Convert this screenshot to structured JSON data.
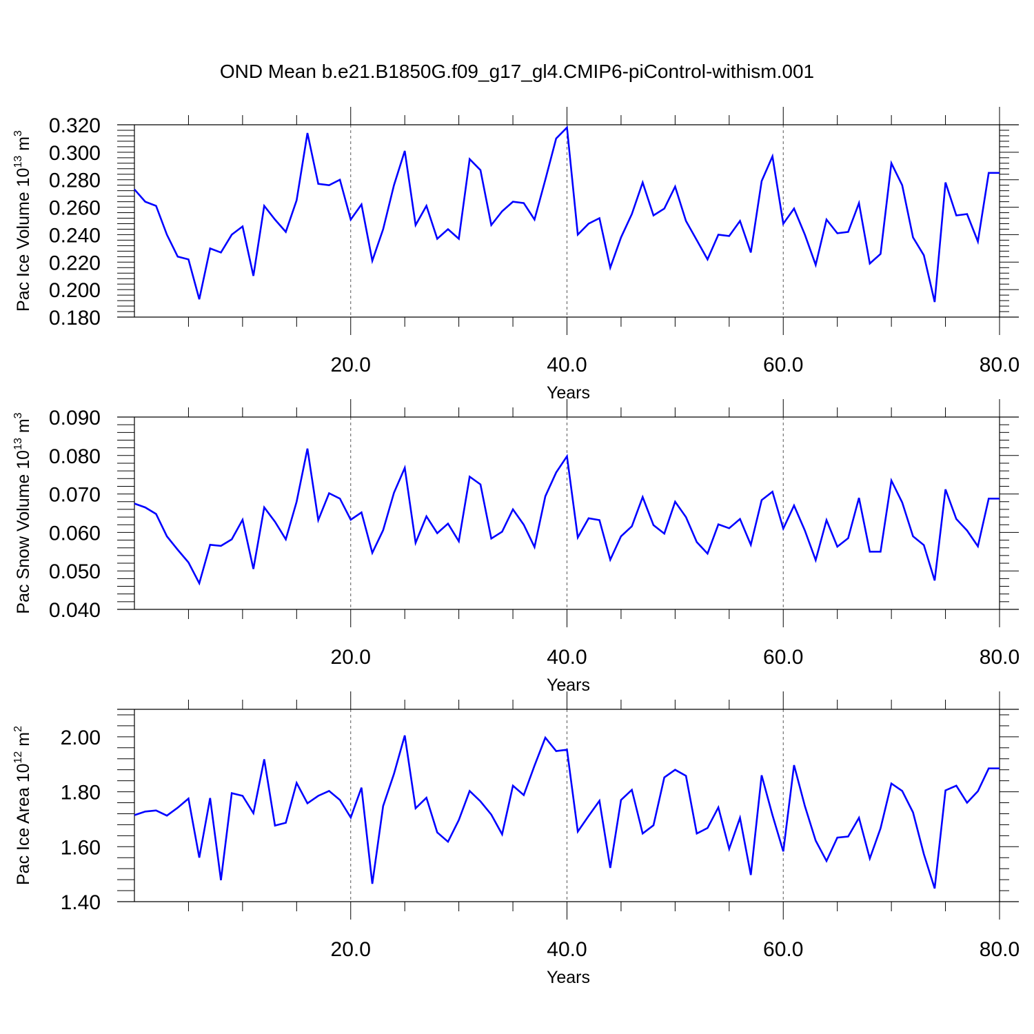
{
  "title": "OND Mean b.e21.B1850G.f09_g17_gl4.CMIP6-piControl-withism.001",
  "colors": {
    "series": "#0000ff",
    "axis": "#000000",
    "grid": "#555555"
  },
  "chart_data": [
    {
      "type": "line",
      "ylabel_main": "Pac Ice Volume 10",
      "ylabel_sup": "13",
      "ylabel_unit": " m",
      "ylabel_unit_sup": "3",
      "xlabel": "Years",
      "xlim": [
        0,
        80
      ],
      "ylim": [
        0.18,
        0.32
      ],
      "xticks": [
        20,
        40,
        60,
        80
      ],
      "xtick_labels": [
        "20.0",
        "40.0",
        "60.0",
        "80.0"
      ],
      "yticks": [
        0.18,
        0.2,
        0.22,
        0.24,
        0.26,
        0.28,
        0.3,
        0.32
      ],
      "ytick_labels": [
        "0.180",
        "0.200",
        "0.220",
        "0.240",
        "0.260",
        "0.280",
        "0.300",
        "0.320"
      ],
      "grid_x": [
        20,
        40,
        60
      ],
      "series": [
        {
          "x": [
            0,
            1,
            2,
            3,
            4,
            5,
            6,
            7,
            8,
            9,
            10,
            11,
            12,
            13,
            14,
            15,
            16,
            17,
            18,
            19,
            20,
            21,
            22,
            23,
            24,
            25,
            26,
            27,
            28,
            29,
            30,
            31,
            32,
            33,
            34,
            35,
            36,
            37,
            38,
            39,
            40,
            41,
            42,
            43,
            44,
            45,
            46,
            47,
            48,
            49,
            50,
            51,
            52,
            53,
            54,
            55,
            56,
            57,
            58,
            59,
            60,
            61,
            62,
            63,
            64,
            65,
            66,
            67,
            68,
            69,
            70,
            71,
            72,
            73,
            74,
            75,
            76,
            77,
            78,
            79,
            80
          ],
          "values": [
            0.273,
            0.264,
            0.261,
            0.24,
            0.224,
            0.222,
            0.193,
            0.23,
            0.227,
            0.24,
            0.246,
            0.21,
            0.261,
            0.251,
            0.242,
            0.265,
            0.314,
            0.277,
            0.276,
            0.28,
            0.251,
            0.262,
            0.221,
            0.244,
            0.276,
            0.301,
            0.247,
            0.261,
            0.237,
            0.244,
            0.237,
            0.295,
            0.287,
            0.247,
            0.257,
            0.264,
            0.263,
            0.251,
            0.28,
            0.31,
            0.318,
            0.24,
            0.248,
            0.252,
            0.216,
            0.238,
            0.255,
            0.278,
            0.254,
            0.259,
            0.275,
            0.25,
            0.236,
            0.222,
            0.24,
            0.239,
            0.25,
            0.227,
            0.279,
            0.297,
            0.248,
            0.259,
            0.24,
            0.218,
            0.251,
            0.241,
            0.242,
            0.263,
            0.219,
            0.226,
            0.292,
            0.276,
            0.238,
            0.225,
            0.191,
            0.278,
            0.254,
            0.255,
            0.235,
            0.285,
            0.285
          ]
        }
      ]
    },
    {
      "type": "line",
      "ylabel_main": "Pac Snow Volume 10",
      "ylabel_sup": "13",
      "ylabel_unit": " m",
      "ylabel_unit_sup": "3",
      "xlabel": "Years",
      "xlim": [
        0,
        80
      ],
      "ylim": [
        0.04,
        0.09
      ],
      "xticks": [
        20,
        40,
        60,
        80
      ],
      "xtick_labels": [
        "20.0",
        "40.0",
        "60.0",
        "80.0"
      ],
      "yticks": [
        0.04,
        0.05,
        0.06,
        0.07,
        0.08,
        0.09
      ],
      "ytick_labels": [
        "0.040",
        "0.050",
        "0.060",
        "0.070",
        "0.080",
        "0.090"
      ],
      "grid_x": [
        20,
        40,
        60
      ],
      "series": [
        {
          "x": [
            0,
            1,
            2,
            3,
            4,
            5,
            6,
            7,
            8,
            9,
            10,
            11,
            12,
            13,
            14,
            15,
            16,
            17,
            18,
            19,
            20,
            21,
            22,
            23,
            24,
            25,
            26,
            27,
            28,
            29,
            30,
            31,
            32,
            33,
            34,
            35,
            36,
            37,
            38,
            39,
            40,
            41,
            42,
            43,
            44,
            45,
            46,
            47,
            48,
            49,
            50,
            51,
            52,
            53,
            54,
            55,
            56,
            57,
            58,
            59,
            60,
            61,
            62,
            63,
            64,
            65,
            66,
            67,
            68,
            69,
            70,
            71,
            72,
            73,
            74,
            75,
            76,
            77,
            78,
            79,
            80
          ],
          "values": [
            0.0675,
            0.0665,
            0.0648,
            0.059,
            0.0555,
            0.0522,
            0.0468,
            0.0568,
            0.0565,
            0.0582,
            0.0633,
            0.0505,
            0.0665,
            0.0628,
            0.0582,
            0.068,
            0.0818,
            0.0632,
            0.0702,
            0.0688,
            0.0633,
            0.0652,
            0.0547,
            0.0606,
            0.0703,
            0.0768,
            0.0573,
            0.0642,
            0.0598,
            0.0623,
            0.0577,
            0.0745,
            0.0725,
            0.0584,
            0.0602,
            0.066,
            0.062,
            0.0562,
            0.0694,
            0.0756,
            0.0798,
            0.0587,
            0.0637,
            0.0632,
            0.0529,
            0.059,
            0.0616,
            0.0692,
            0.0619,
            0.0597,
            0.068,
            0.064,
            0.0575,
            0.0545,
            0.0621,
            0.0611,
            0.0635,
            0.0568,
            0.0684,
            0.0706,
            0.061,
            0.067,
            0.0605,
            0.0528,
            0.0632,
            0.0563,
            0.0585,
            0.069,
            0.055,
            0.055,
            0.0735,
            0.0678,
            0.059,
            0.0567,
            0.0475,
            0.0712,
            0.0635,
            0.0605,
            0.0564,
            0.0688,
            0.0688
          ]
        }
      ]
    },
    {
      "type": "line",
      "ylabel_main": "Pac Ice Area 10",
      "ylabel_sup": "12",
      "ylabel_unit": " m",
      "ylabel_unit_sup": "2",
      "xlabel": "Years",
      "xlim": [
        0,
        80
      ],
      "ylim": [
        1.4,
        2.1
      ],
      "xticks": [
        20,
        40,
        60,
        80
      ],
      "xtick_labels": [
        "20.0",
        "40.0",
        "60.0",
        "80.0"
      ],
      "yticks": [
        1.4,
        1.6,
        1.8,
        2.0
      ],
      "ytick_labels": [
        "1.40",
        "1.60",
        "1.80",
        "2.00"
      ],
      "grid_x": [
        20,
        40,
        60
      ],
      "series": [
        {
          "x": [
            0,
            1,
            2,
            3,
            4,
            5,
            6,
            7,
            8,
            9,
            10,
            11,
            12,
            13,
            14,
            15,
            16,
            17,
            18,
            19,
            20,
            21,
            22,
            23,
            24,
            25,
            26,
            27,
            28,
            29,
            30,
            31,
            32,
            33,
            34,
            35,
            36,
            37,
            38,
            39,
            40,
            41,
            42,
            43,
            44,
            45,
            46,
            47,
            48,
            49,
            50,
            51,
            52,
            53,
            54,
            55,
            56,
            57,
            58,
            59,
            60,
            61,
            62,
            63,
            64,
            65,
            66,
            67,
            68,
            69,
            70,
            71,
            72,
            73,
            74,
            75,
            76,
            77,
            78,
            79,
            80
          ],
          "values": [
            1.715,
            1.728,
            1.732,
            1.713,
            1.742,
            1.775,
            1.56,
            1.777,
            1.478,
            1.795,
            1.785,
            1.722,
            1.918,
            1.677,
            1.687,
            1.832,
            1.758,
            1.785,
            1.803,
            1.77,
            1.706,
            1.815,
            1.465,
            1.748,
            1.865,
            2.005,
            1.74,
            1.778,
            1.652,
            1.618,
            1.697,
            1.803,
            1.765,
            1.717,
            1.645,
            1.822,
            1.788,
            1.895,
            1.997,
            1.948,
            1.953,
            1.655,
            1.712,
            1.767,
            1.523,
            1.77,
            1.807,
            1.648,
            1.678,
            1.852,
            1.88,
            1.858,
            1.648,
            1.668,
            1.743,
            1.592,
            1.705,
            1.497,
            1.86,
            1.715,
            1.583,
            1.897,
            1.748,
            1.622,
            1.548,
            1.633,
            1.637,
            1.705,
            1.557,
            1.667,
            1.83,
            1.803,
            1.725,
            1.573,
            1.448,
            1.805,
            1.822,
            1.76,
            1.802,
            1.885,
            1.885
          ]
        }
      ]
    }
  ]
}
